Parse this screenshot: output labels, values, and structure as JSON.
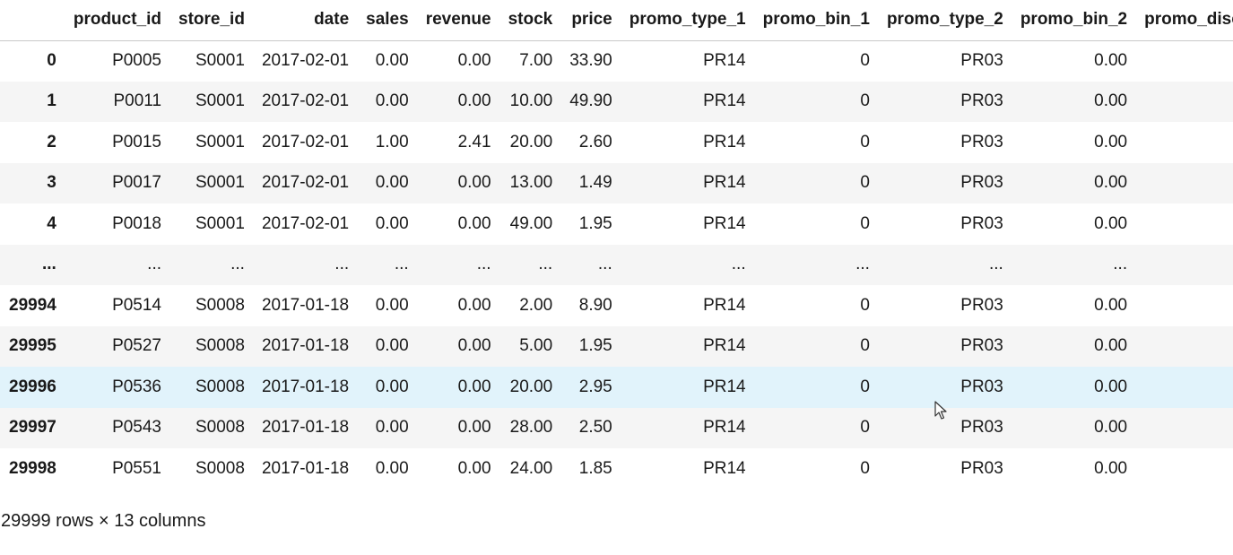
{
  "table": {
    "columns": [
      "",
      "product_id",
      "store_id",
      "date",
      "sales",
      "revenue",
      "stock",
      "price",
      "promo_type_1",
      "promo_bin_1",
      "promo_type_2",
      "promo_bin_2",
      "promo_disc"
    ],
    "rows": [
      [
        "0",
        "P0005",
        "S0001",
        "2017-02-01",
        "0.00",
        "0.00",
        "7.00",
        "33.90",
        "PR14",
        "0",
        "PR03",
        "0.00",
        ""
      ],
      [
        "1",
        "P0011",
        "S0001",
        "2017-02-01",
        "0.00",
        "0.00",
        "10.00",
        "49.90",
        "PR14",
        "0",
        "PR03",
        "0.00",
        ""
      ],
      [
        "2",
        "P0015",
        "S0001",
        "2017-02-01",
        "1.00",
        "2.41",
        "20.00",
        "2.60",
        "PR14",
        "0",
        "PR03",
        "0.00",
        ""
      ],
      [
        "3",
        "P0017",
        "S0001",
        "2017-02-01",
        "0.00",
        "0.00",
        "13.00",
        "1.49",
        "PR14",
        "0",
        "PR03",
        "0.00",
        ""
      ],
      [
        "4",
        "P0018",
        "S0001",
        "2017-02-01",
        "0.00",
        "0.00",
        "49.00",
        "1.95",
        "PR14",
        "0",
        "PR03",
        "0.00",
        ""
      ],
      [
        "...",
        "...",
        "...",
        "...",
        "...",
        "...",
        "...",
        "...",
        "...",
        "...",
        "...",
        "...",
        ""
      ],
      [
        "29994",
        "P0514",
        "S0008",
        "2017-01-18",
        "0.00",
        "0.00",
        "2.00",
        "8.90",
        "PR14",
        "0",
        "PR03",
        "0.00",
        ""
      ],
      [
        "29995",
        "P0527",
        "S0008",
        "2017-01-18",
        "0.00",
        "0.00",
        "5.00",
        "1.95",
        "PR14",
        "0",
        "PR03",
        "0.00",
        ""
      ],
      [
        "29996",
        "P0536",
        "S0008",
        "2017-01-18",
        "0.00",
        "0.00",
        "20.00",
        "2.95",
        "PR14",
        "0",
        "PR03",
        "0.00",
        ""
      ],
      [
        "29997",
        "P0543",
        "S0008",
        "2017-01-18",
        "0.00",
        "0.00",
        "28.00",
        "2.50",
        "PR14",
        "0",
        "PR03",
        "0.00",
        ""
      ],
      [
        "29998",
        "P0551",
        "S0008",
        "2017-01-18",
        "0.00",
        "0.00",
        "24.00",
        "1.85",
        "PR14",
        "0",
        "PR03",
        "0.00",
        ""
      ]
    ],
    "hover_row_index": 8
  },
  "footer": {
    "shape_text": "29999 rows × 13 columns"
  },
  "colors": {
    "row_stripe": "#f5f5f5",
    "row_hover": "#e1f3fb",
    "header_border": "#c9c9c9"
  },
  "cursor": {
    "icon": "mouse-pointer-icon"
  }
}
